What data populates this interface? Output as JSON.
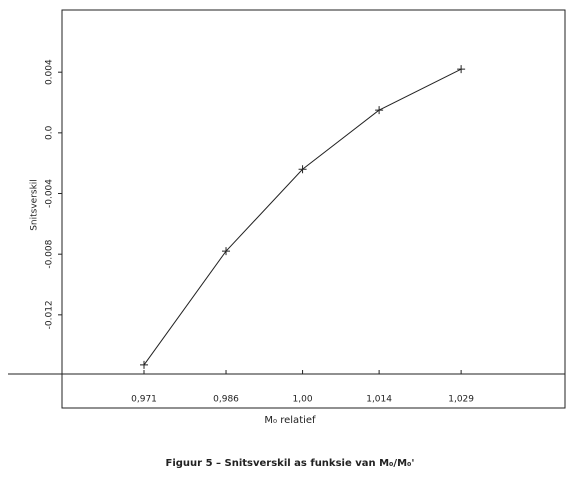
{
  "chart_data": {
    "type": "line",
    "caption": "Figuur 5 – Snitsverskil as funksie van M₀/M₀'",
    "xlabel": "M₀ relatief",
    "ylabel": "Snitsverskil",
    "x": [
      0.971,
      0.986,
      1.0,
      1.014,
      1.029
    ],
    "values": [
      -0.0153,
      -0.0078,
      -0.0024,
      0.0015,
      0.0042
    ],
    "color": "#222222",
    "xlim": [
      0.956,
      1.048
    ],
    "ylim": [
      -0.0159,
      0.0081
    ],
    "xticks": [
      {
        "value": 0.971,
        "label": "0,971"
      },
      {
        "value": 0.986,
        "label": "0,986"
      },
      {
        "value": 1.0,
        "label": "1,00"
      },
      {
        "value": 1.014,
        "label": "1,014"
      },
      {
        "value": 1.029,
        "label": "1,029"
      }
    ],
    "yticks": [
      0.004,
      {
        "value": 0,
        "label": "0.0"
      },
      -0.004,
      -0.008,
      -0.012
    ],
    "grid": false
  }
}
